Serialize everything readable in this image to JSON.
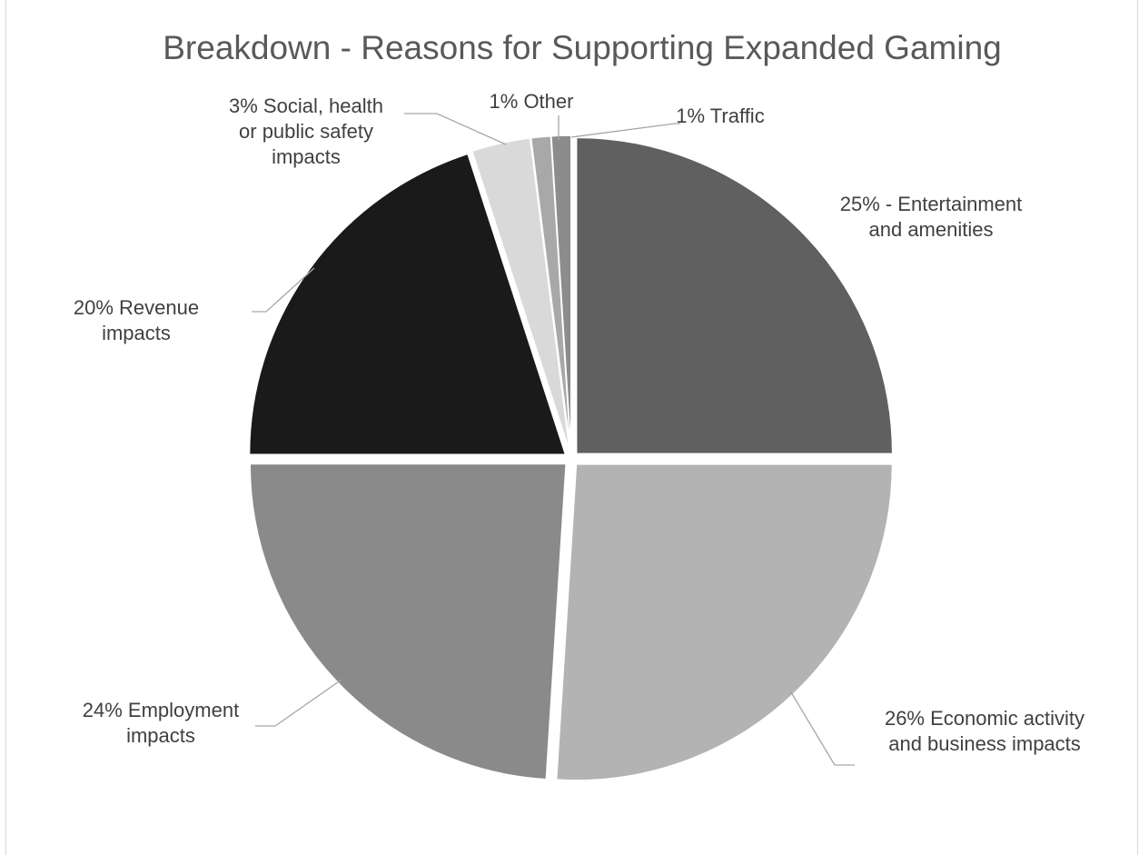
{
  "chart_data": {
    "type": "pie",
    "title": "Breakdown - Reasons for Supporting Expanded Gaming",
    "categories": [
      "Entertainment and amenities",
      "Economic activity and business impacts",
      "Employment impacts",
      "Revenue impacts",
      "Social, health or public safety impacts",
      "Other",
      "Traffic"
    ],
    "values": [
      25,
      26,
      24,
      20,
      3,
      1,
      1
    ],
    "unit": "%",
    "colors": [
      "#606060",
      "#b3b3b3",
      "#8a8a8a",
      "#1a1a1a",
      "#d9d9d9",
      "#a8a8a8",
      "#8c8c8c"
    ],
    "data_labels": [
      [
        "25% - Entertainment",
        "and amenities"
      ],
      [
        "26% Economic activity",
        "and business impacts"
      ],
      [
        "24% Employment",
        "impacts"
      ],
      [
        "20% Revenue",
        "impacts"
      ],
      [
        "3% Social, health",
        "or public safety",
        "impacts"
      ],
      [
        "1% Other"
      ],
      [
        "1% Traffic"
      ]
    ],
    "legend": "none",
    "start_angle": "12 o'clock, clockwise",
    "exploded": true
  }
}
